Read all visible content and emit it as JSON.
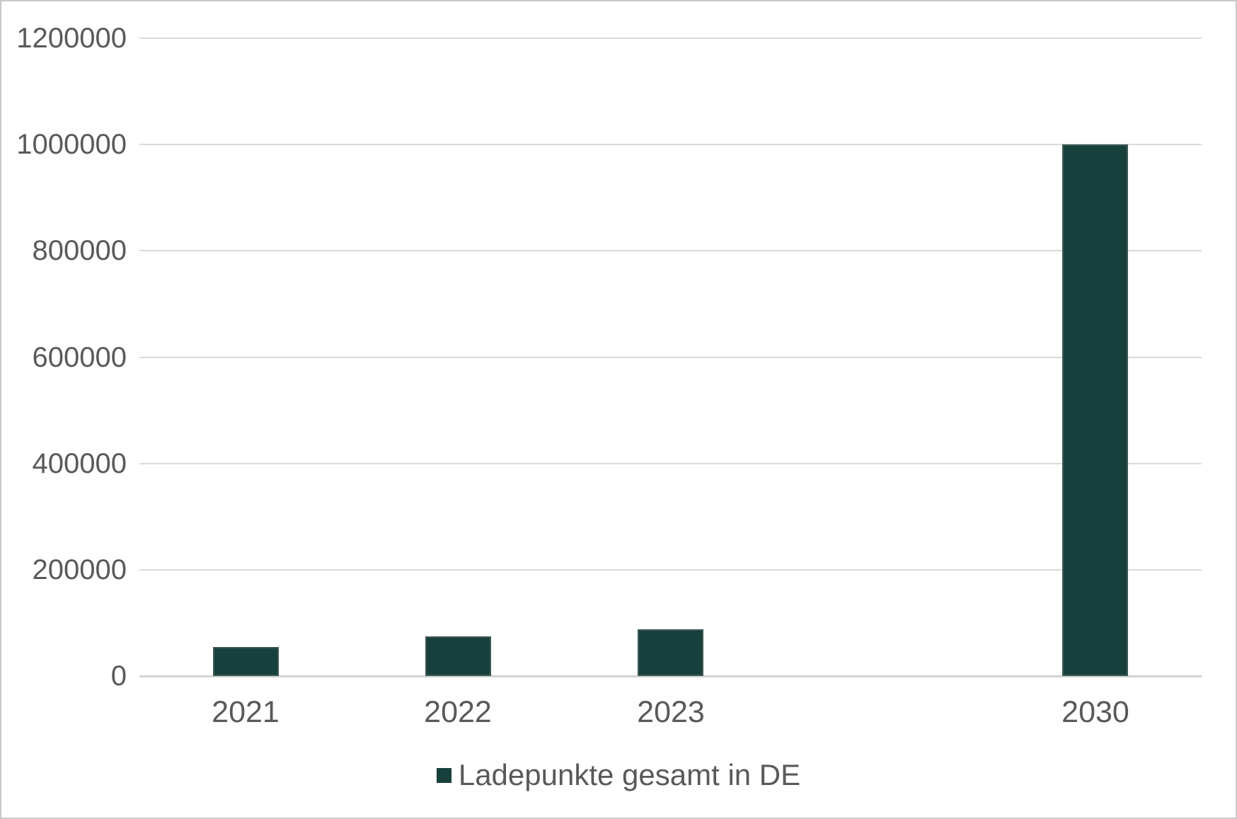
{
  "chart_data": {
    "type": "bar",
    "title": "",
    "xlabel": "",
    "ylabel": "",
    "categories": [
      "2021",
      "2022",
      "2023",
      "2030"
    ],
    "series": [
      {
        "name": "Ladepunkte gesamt in DE",
        "values": [
          55000,
          75000,
          88000,
          1000000
        ]
      }
    ],
    "category_slots": [
      0,
      1,
      2,
      4
    ],
    "total_slots": 5,
    "ylim": [
      0,
      1200000
    ],
    "yticks": [
      0,
      200000,
      400000,
      600000,
      800000,
      1000000,
      1200000
    ],
    "ytick_labels": [
      "0",
      "200000",
      "400000",
      "600000",
      "800000",
      "1000000",
      "1200000"
    ],
    "grid": true,
    "legend_position": "bottom",
    "colors": {
      "bar_fill": "#17403d",
      "bar_border": "#3c5854",
      "gridline": "#d9d9d9",
      "axis_line": "#d2d2d2",
      "label_text": "#595959",
      "outer_border": "#c9c9c9",
      "background": "#ffffff"
    }
  }
}
